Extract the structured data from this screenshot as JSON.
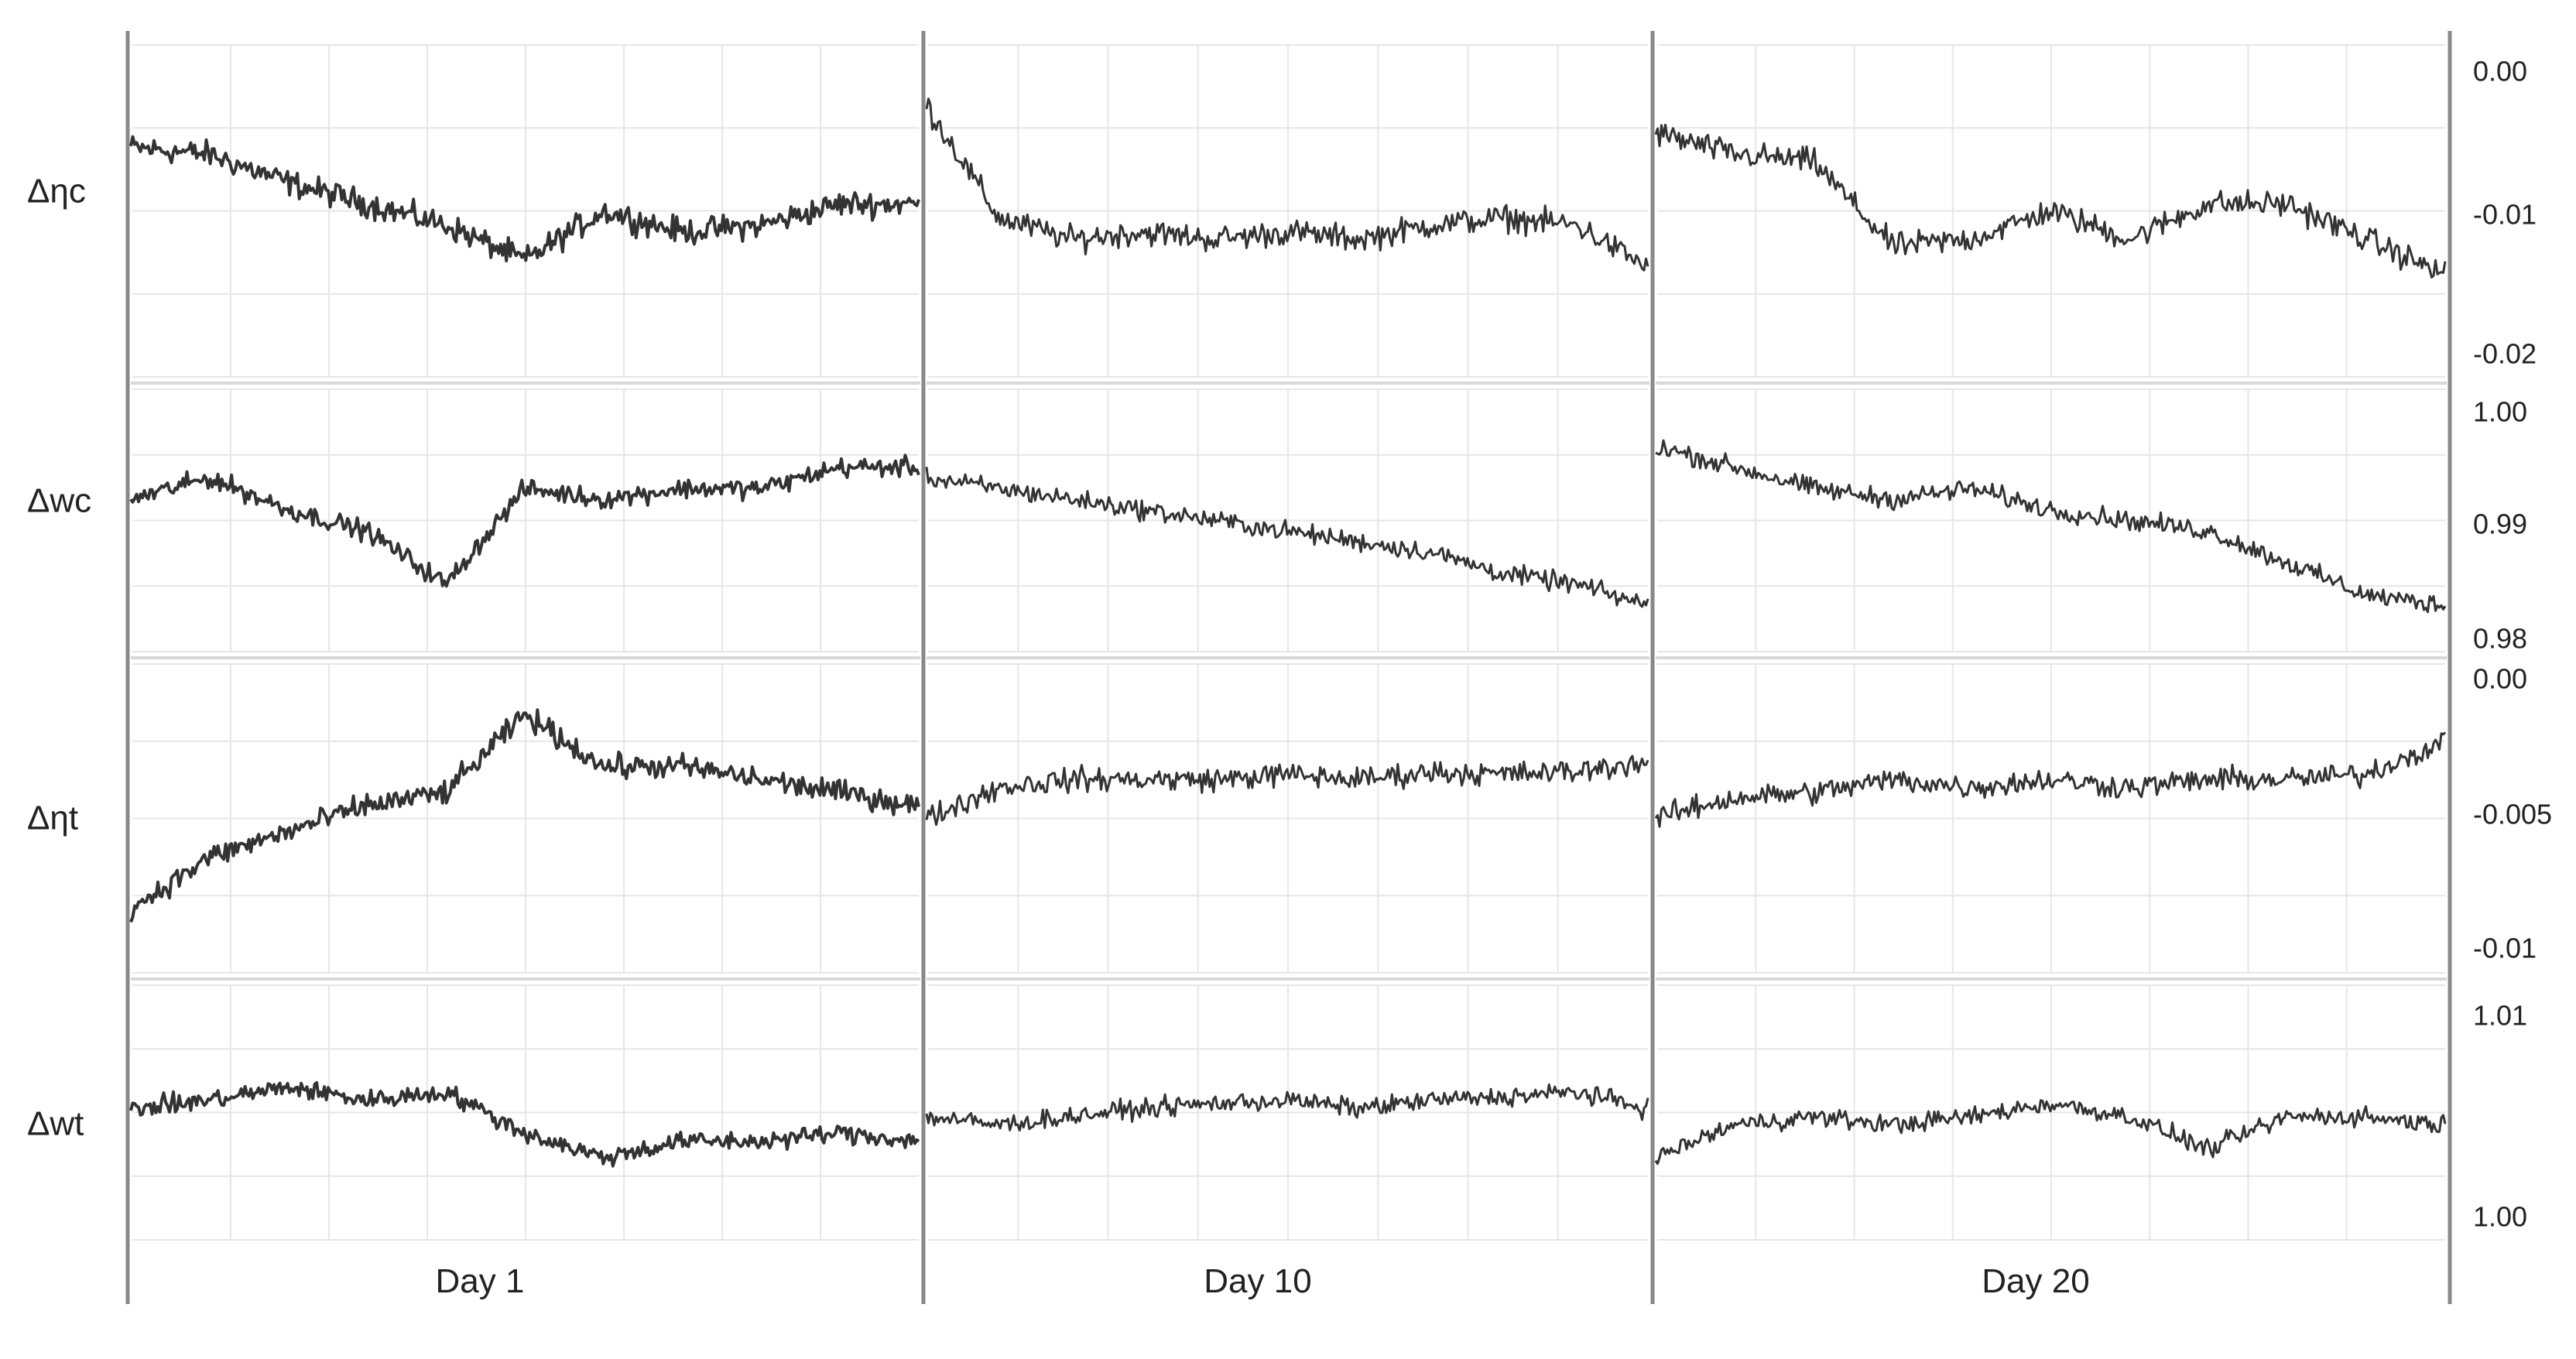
{
  "chart_data": {
    "type": "line",
    "colors": {
      "line": "#333333",
      "grid": "#e6e6e6",
      "frame": "#888888",
      "text": "#222222"
    },
    "grid": true,
    "columns": [
      {
        "label": "Day 1"
      },
      {
        "label": "Day 10"
      },
      {
        "label": "Day 20"
      }
    ],
    "rows": [
      {
        "label": "Δηc",
        "ylim": [
          -0.02,
          0.0
        ],
        "ticks": [
          {
            "value": 0.0,
            "label": "0.00"
          },
          {
            "value": -0.01,
            "label": "-0.01"
          },
          {
            "value": -0.02,
            "label": "-0.02"
          }
        ],
        "series": [
          {
            "x": [
              0,
              10,
              20,
              30,
              40,
              50,
              60,
              70,
              80,
              90,
              100
            ],
            "y": [
              -0.0055,
              -0.006,
              -0.008,
              -0.0095,
              -0.011,
              -0.0135,
              -0.01,
              -0.0115,
              -0.011,
              -0.0095,
              -0.0095
            ]
          },
          {
            "x": [
              0,
              10,
              20,
              30,
              40,
              50,
              60,
              70,
              80,
              90,
              100
            ],
            "y": [
              -0.0025,
              -0.0105,
              -0.012,
              -0.0115,
              -0.012,
              -0.0115,
              -0.012,
              -0.011,
              -0.0105,
              -0.011,
              -0.014
            ]
          },
          {
            "x": [
              0,
              10,
              20,
              30,
              40,
              50,
              60,
              70,
              80,
              90,
              100
            ],
            "y": [
              -0.0045,
              -0.006,
              -0.0065,
              -0.0125,
              -0.012,
              -0.01,
              -0.012,
              -0.0095,
              -0.0095,
              -0.012,
              -0.0145
            ]
          }
        ]
      },
      {
        "label": "Δwc",
        "ylim": [
          0.98,
          1.0
        ],
        "ticks": [
          {
            "value": 1.0,
            "label": "1.00"
          },
          {
            "value": 0.99,
            "label": "0.99"
          },
          {
            "value": 0.98,
            "label": "0.98"
          }
        ],
        "series": [
          {
            "x": [
              0,
              10,
              20,
              30,
              40,
              50,
              60,
              70,
              80,
              90,
              100
            ],
            "y": [
              0.992,
              0.994,
              0.991,
              0.989,
              0.984,
              0.993,
              0.992,
              0.993,
              0.993,
              0.995,
              0.995
            ]
          },
          {
            "x": [
              0,
              10,
              20,
              30,
              40,
              50,
              60,
              70,
              80,
              90,
              100
            ],
            "y": [
              0.994,
              0.993,
              0.992,
              0.991,
              0.99,
              0.989,
              0.988,
              0.987,
              0.985,
              0.984,
              0.982
            ]
          },
          {
            "x": [
              0,
              10,
              20,
              30,
              40,
              50,
              60,
              70,
              80,
              90,
              100
            ],
            "y": [
              0.997,
              0.995,
              0.993,
              0.992,
              0.993,
              0.991,
              0.99,
              0.989,
              0.986,
              0.983,
              0.982
            ]
          }
        ]
      },
      {
        "label": "Δηt",
        "ylim": [
          -0.01,
          0.0
        ],
        "ticks": [
          {
            "value": 0.0,
            "label": "0.00"
          },
          {
            "value": -0.005,
            "label": "-0.005"
          },
          {
            "value": -0.01,
            "label": "-0.01"
          }
        ],
        "series": [
          {
            "x": [
              0,
              10,
              20,
              30,
              40,
              50,
              60,
              70,
              80,
              90,
              100
            ],
            "y": [
              -0.0085,
              -0.0065,
              -0.0055,
              -0.0045,
              -0.004,
              -0.001,
              -0.003,
              -0.003,
              -0.0035,
              -0.004,
              -0.0045
            ]
          },
          {
            "x": [
              0,
              10,
              20,
              30,
              40,
              50,
              60,
              70,
              80,
              90,
              100
            ],
            "y": [
              -0.005,
              -0.0038,
              -0.0035,
              -0.0035,
              -0.0035,
              -0.0033,
              -0.0035,
              -0.0032,
              -0.0033,
              -0.0032,
              -0.0028
            ]
          },
          {
            "x": [
              0,
              10,
              20,
              30,
              40,
              50,
              60,
              70,
              80,
              90,
              100
            ],
            "y": [
              -0.005,
              -0.0042,
              -0.004,
              -0.0035,
              -0.0038,
              -0.0035,
              -0.0038,
              -0.0035,
              -0.0035,
              -0.0033,
              -0.002
            ]
          }
        ]
      },
      {
        "label": "Δwt",
        "ylim": [
          0.998,
          1.0105
        ],
        "ticks": [
          {
            "value": 1.01,
            "label": "1.01"
          },
          {
            "value": 1.0,
            "label": "1.00"
          }
        ],
        "series": [
          {
            "x": [
              0,
              10,
              20,
              30,
              40,
              50,
              60,
              70,
              80,
              90,
              100
            ],
            "y": [
              1.0045,
              1.005,
              1.0058,
              1.005,
              1.0055,
              1.003,
              1.0015,
              1.0025,
              1.0025,
              1.003,
              1.0025
            ]
          },
          {
            "x": [
              0,
              10,
              20,
              30,
              40,
              50,
              60,
              70,
              80,
              90,
              100
            ],
            "y": [
              1.004,
              1.0035,
              1.004,
              1.0045,
              1.0048,
              1.005,
              1.0045,
              1.005,
              1.0052,
              1.0055,
              1.0045
            ]
          },
          {
            "x": [
              0,
              10,
              20,
              30,
              40,
              50,
              60,
              70,
              80,
              90,
              100
            ],
            "y": [
              1.0015,
              1.0035,
              1.004,
              1.0035,
              1.004,
              1.0048,
              1.004,
              1.002,
              1.004,
              1.004,
              1.0035
            ]
          }
        ]
      }
    ]
  }
}
